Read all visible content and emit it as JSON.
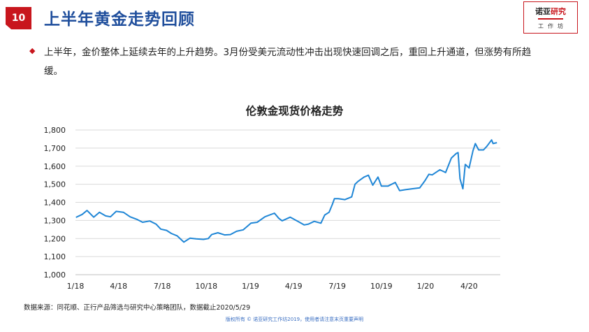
{
  "page": {
    "number": "10",
    "title": "上半年黄金走势回顾"
  },
  "logo": {
    "part1": "诺亚",
    "part2": "研究",
    "subtitle": "工作坊"
  },
  "summary": {
    "bullet": "◆",
    "text": "上半年，金价整体上延续去年的上升趋势。3月份受美元流动性冲击出现快速回调之后，重回上升通道，但涨势有所趋缓。"
  },
  "footer": {
    "source": "数据来源：同花顺、正行产品筛选与研究中心策略团队，数据截止2020/5/29",
    "copyright": "版权所有 © 诺亚研究工作坊2019，使用者请注意末页重要声明"
  },
  "colors": {
    "line": "#1f86d6",
    "grid": "#d9d9d9",
    "accent": "#c8161d",
    "title_blue": "#1f4e9c"
  },
  "chart_data": {
    "type": "line",
    "title": "伦敦金现货价格走势",
    "xlabel": "",
    "ylabel": "",
    "grid": true,
    "ylim": [
      1000,
      1800
    ],
    "y_ticks": [
      1000,
      1100,
      1200,
      1300,
      1400,
      1500,
      1600,
      1700,
      1800
    ],
    "y_tick_labels": [
      "1,000",
      "1,100",
      "1,200",
      "1,300",
      "1,400",
      "1,500",
      "1,600",
      "1,700",
      "1,800"
    ],
    "xlim": [
      "2018-01-01",
      "2020-06-05"
    ],
    "x_ticks": [
      "2018-01-01",
      "2018-04-01",
      "2018-07-01",
      "2018-10-01",
      "2019-01-01",
      "2019-04-01",
      "2019-07-01",
      "2019-10-01",
      "2020-01-01",
      "2020-04-01"
    ],
    "x_tick_labels": [
      "1/18",
      "4/18",
      "7/18",
      "10/18",
      "1/19",
      "4/19",
      "7/19",
      "10/19",
      "1/20",
      "4/20"
    ],
    "series": [
      {
        "name": "",
        "x": [
          "2018-01-02",
          "2018-01-15",
          "2018-01-25",
          "2018-02-08",
          "2018-02-20",
          "2018-03-05",
          "2018-03-15",
          "2018-03-27",
          "2018-04-11",
          "2018-04-25",
          "2018-05-10",
          "2018-05-21",
          "2018-06-05",
          "2018-06-18",
          "2018-06-28",
          "2018-07-10",
          "2018-07-20",
          "2018-08-01",
          "2018-08-15",
          "2018-08-28",
          "2018-09-10",
          "2018-09-25",
          "2018-10-05",
          "2018-10-12",
          "2018-10-25",
          "2018-11-08",
          "2018-11-20",
          "2018-12-03",
          "2018-12-17",
          "2019-01-02",
          "2019-01-15",
          "2019-01-31",
          "2019-02-20",
          "2019-03-01",
          "2019-03-08",
          "2019-03-25",
          "2019-04-10",
          "2019-04-23",
          "2019-05-02",
          "2019-05-14",
          "2019-05-28",
          "2019-06-05",
          "2019-06-14",
          "2019-06-21",
          "2019-06-25",
          "2019-07-03",
          "2019-07-17",
          "2019-07-31",
          "2019-08-07",
          "2019-08-13",
          "2019-08-26",
          "2019-09-04",
          "2019-09-13",
          "2019-09-24",
          "2019-10-01",
          "2019-10-15",
          "2019-10-30",
          "2019-11-08",
          "2019-11-20",
          "2019-12-04",
          "2019-12-20",
          "2019-12-31",
          "2020-01-08",
          "2020-01-15",
          "2020-01-31",
          "2020-02-12",
          "2020-02-24",
          "2020-03-05",
          "2020-03-09",
          "2020-03-13",
          "2020-03-19",
          "2020-03-24",
          "2020-04-01",
          "2020-04-09",
          "2020-04-14",
          "2020-04-21",
          "2020-05-01",
          "2020-05-08",
          "2020-05-18",
          "2020-05-21",
          "2020-05-29"
        ],
        "values": [
          1317,
          1333,
          1355,
          1318,
          1345,
          1325,
          1320,
          1350,
          1345,
          1320,
          1305,
          1290,
          1297,
          1280,
          1252,
          1245,
          1228,
          1215,
          1180,
          1202,
          1198,
          1195,
          1200,
          1222,
          1232,
          1220,
          1222,
          1240,
          1248,
          1285,
          1290,
          1320,
          1340,
          1312,
          1298,
          1318,
          1295,
          1275,
          1280,
          1295,
          1285,
          1330,
          1345,
          1390,
          1420,
          1420,
          1415,
          1430,
          1500,
          1515,
          1540,
          1550,
          1495,
          1540,
          1490,
          1490,
          1510,
          1465,
          1470,
          1475,
          1480,
          1520,
          1555,
          1552,
          1580,
          1565,
          1645,
          1670,
          1675,
          1530,
          1475,
          1610,
          1590,
          1685,
          1725,
          1690,
          1690,
          1710,
          1745,
          1725,
          1730
        ]
      }
    ]
  }
}
